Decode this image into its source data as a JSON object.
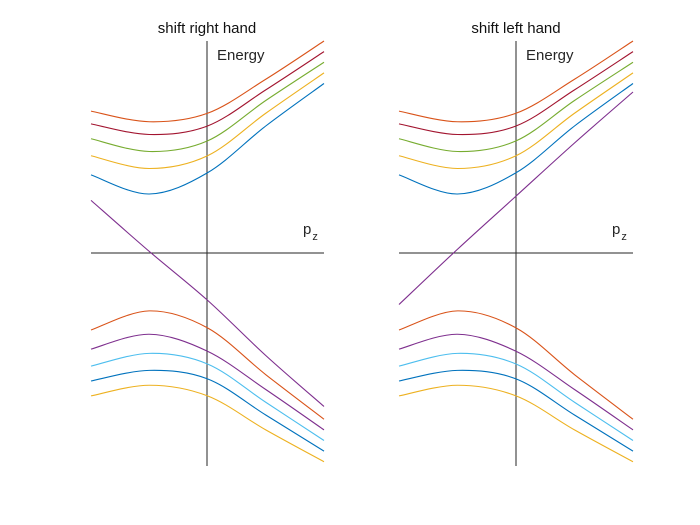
{
  "chart_data": [
    {
      "type": "line",
      "title": "shift right hand",
      "xlabel_main": "p",
      "xlabel_sub": "z",
      "ylabel": "Energy",
      "grid": false,
      "legend": false,
      "xlim": [
        -1,
        1
      ],
      "ylim": [
        -1,
        1
      ],
      "series": [
        {
          "color": "#D95319",
          "x": [
            -1,
            -0.5,
            0,
            0.5,
            1
          ],
          "y": [
            0.67,
            0.62,
            0.66,
            0.82,
            1.0
          ]
        },
        {
          "color": "#A2142F",
          "x": [
            -1,
            -0.5,
            0,
            0.5,
            1
          ],
          "y": [
            0.61,
            0.56,
            0.6,
            0.77,
            0.95
          ]
        },
        {
          "color": "#77AC30",
          "x": [
            -1,
            -0.5,
            0,
            0.5,
            1
          ],
          "y": [
            0.54,
            0.48,
            0.53,
            0.72,
            0.9
          ]
        },
        {
          "color": "#EDB120",
          "x": [
            -1,
            -0.5,
            0,
            0.5,
            1
          ],
          "y": [
            0.46,
            0.4,
            0.46,
            0.66,
            0.85
          ]
        },
        {
          "color": "#0072BD",
          "x": [
            -1,
            -0.5,
            0,
            0.5,
            1
          ],
          "y": [
            0.37,
            0.28,
            0.38,
            0.6,
            0.8
          ]
        },
        {
          "color": "#7E2F8E",
          "x": [
            -1,
            -0.5,
            0,
            0.5,
            1
          ],
          "y": [
            0.25,
            0.01,
            -0.22,
            -0.48,
            -0.72
          ]
        },
        {
          "color": "#D95319",
          "x": [
            -1,
            -0.5,
            0,
            0.5,
            1
          ],
          "y": [
            -0.36,
            -0.27,
            -0.35,
            -0.57,
            -0.78
          ]
        },
        {
          "color": "#7E2F8E",
          "x": [
            -1,
            -0.5,
            0,
            0.5,
            1
          ],
          "y": [
            -0.45,
            -0.38,
            -0.46,
            -0.64,
            -0.83
          ]
        },
        {
          "color": "#4DBEEE",
          "x": [
            -1,
            -0.5,
            0,
            0.5,
            1
          ],
          "y": [
            -0.53,
            -0.47,
            -0.52,
            -0.7,
            -0.88
          ]
        },
        {
          "color": "#0072BD",
          "x": [
            -1,
            -0.5,
            0,
            0.5,
            1
          ],
          "y": [
            -0.6,
            -0.55,
            -0.59,
            -0.76,
            -0.93
          ]
        },
        {
          "color": "#EDB120",
          "x": [
            -1,
            -0.5,
            0,
            0.5,
            1
          ],
          "y": [
            -0.67,
            -0.62,
            -0.67,
            -0.83,
            -0.98
          ]
        }
      ]
    },
    {
      "type": "line",
      "title": "shift left hand",
      "xlabel_main": "p",
      "xlabel_sub": "z",
      "ylabel": "Energy",
      "grid": false,
      "legend": false,
      "xlim": [
        -1,
        1
      ],
      "ylim": [
        -1,
        1
      ],
      "series": [
        {
          "color": "#D95319",
          "x": [
            -1,
            -0.5,
            0,
            0.5,
            1
          ],
          "y": [
            0.67,
            0.62,
            0.66,
            0.82,
            1.0
          ]
        },
        {
          "color": "#A2142F",
          "x": [
            -1,
            -0.5,
            0,
            0.5,
            1
          ],
          "y": [
            0.61,
            0.56,
            0.6,
            0.77,
            0.95
          ]
        },
        {
          "color": "#77AC30",
          "x": [
            -1,
            -0.5,
            0,
            0.5,
            1
          ],
          "y": [
            0.54,
            0.48,
            0.53,
            0.72,
            0.9
          ]
        },
        {
          "color": "#EDB120",
          "x": [
            -1,
            -0.5,
            0,
            0.5,
            1
          ],
          "y": [
            0.46,
            0.4,
            0.46,
            0.66,
            0.85
          ]
        },
        {
          "color": "#0072BD",
          "x": [
            -1,
            -0.5,
            0,
            0.5,
            1
          ],
          "y": [
            0.37,
            0.28,
            0.38,
            0.6,
            0.8
          ]
        },
        {
          "color": "#7E2F8E",
          "x": [
            -1,
            -0.5,
            0,
            0.5,
            1
          ],
          "y": [
            -0.24,
            0.02,
            0.27,
            0.52,
            0.76
          ]
        },
        {
          "color": "#D95319",
          "x": [
            -1,
            -0.5,
            0,
            0.5,
            1
          ],
          "y": [
            -0.36,
            -0.27,
            -0.35,
            -0.57,
            -0.78
          ]
        },
        {
          "color": "#7E2F8E",
          "x": [
            -1,
            -0.5,
            0,
            0.5,
            1
          ],
          "y": [
            -0.45,
            -0.38,
            -0.46,
            -0.64,
            -0.83
          ]
        },
        {
          "color": "#4DBEEE",
          "x": [
            -1,
            -0.5,
            0,
            0.5,
            1
          ],
          "y": [
            -0.53,
            -0.47,
            -0.52,
            -0.7,
            -0.88
          ]
        },
        {
          "color": "#0072BD",
          "x": [
            -1,
            -0.5,
            0,
            0.5,
            1
          ],
          "y": [
            -0.6,
            -0.55,
            -0.59,
            -0.76,
            -0.93
          ]
        },
        {
          "color": "#EDB120",
          "x": [
            -1,
            -0.5,
            0,
            0.5,
            1
          ],
          "y": [
            -0.67,
            -0.62,
            -0.67,
            -0.83,
            -0.98
          ]
        }
      ]
    }
  ]
}
